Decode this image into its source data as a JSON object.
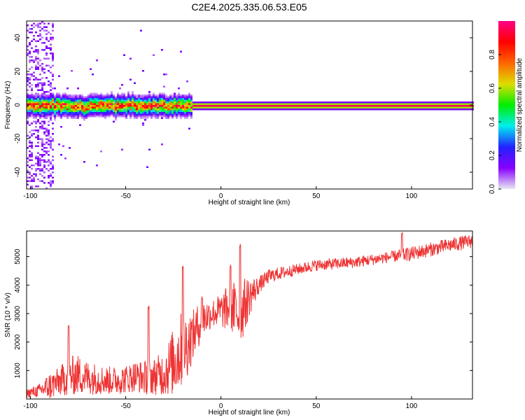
{
  "title": "C2E4.2025.335.06.53.E05",
  "colors": {
    "snr_line": "#ee3333",
    "colorbar": [
      "#e8e8f0",
      "#8800ff",
      "#2222ff",
      "#00eeee",
      "#00ee00",
      "#dddd00",
      "#ff6600",
      "#ff0000",
      "#ff0088"
    ]
  },
  "chart_data": [
    {
      "type": "heatmap",
      "title": "C2E4.2025.335.06.53.E05",
      "xlabel": "Height of straight line (km)",
      "ylabel": "Frequency (Hz)",
      "xlim": [
        -102,
        132
      ],
      "ylim": [
        -50,
        50
      ],
      "xticks": [
        -100,
        -50,
        0,
        50,
        100
      ],
      "yticks": [
        -40,
        -20,
        0,
        20,
        40
      ],
      "colorbar": {
        "label": "Normalized spectral amplitude",
        "range": [
          0,
          1
        ],
        "ticks": [
          "0.0",
          "0.2",
          "0.4",
          "0.6",
          "0.8"
        ]
      },
      "description_points": {
        "peak_frequency_hz": 0,
        "noisy_region_km": [
          -100,
          -15
        ],
        "clean_region_km": [
          -15,
          132
        ],
        "spread_hz_noisy": 4,
        "spread_hz_clean": 1.5
      }
    },
    {
      "type": "line",
      "xlabel": "Height of straight line (km)",
      "ylabel": "SNR (10 * v/v)",
      "xlim": [
        -102,
        132
      ],
      "ylim": [
        0,
        5900
      ],
      "xticks": [
        -100,
        -50,
        0,
        50,
        100
      ],
      "yticks": [
        1000,
        2000,
        3000,
        4000,
        5000
      ],
      "series": [
        {
          "name": "SNR",
          "x": [
            -102,
            -95,
            -90,
            -85,
            -80,
            -75,
            -70,
            -65,
            -60,
            -55,
            -50,
            -45,
            -40,
            -35,
            -30,
            -25,
            -22,
            -20,
            -18,
            -15,
            -10,
            -5,
            0,
            5,
            10,
            15,
            20,
            25,
            30,
            40,
            50,
            60,
            70,
            80,
            90,
            100,
            110,
            120,
            132
          ],
          "values": [
            200,
            300,
            450,
            600,
            800,
            850,
            750,
            700,
            650,
            650,
            700,
            800,
            750,
            800,
            900,
            1300,
            1600,
            1800,
            1900,
            2200,
            2800,
            3000,
            3100,
            3200,
            3000,
            3600,
            4000,
            4300,
            4400,
            4550,
            4700,
            4750,
            4800,
            4900,
            5000,
            5100,
            5250,
            5400,
            5550
          ],
          "noise": [
            150,
            250,
            500,
            500,
            700,
            700,
            600,
            550,
            500,
            500,
            500,
            550,
            600,
            650,
            800,
            1200,
            1400,
            1300,
            1200,
            900,
            700,
            500,
            600,
            900,
            1200,
            700,
            300,
            250,
            230,
            200,
            200,
            200,
            200,
            200,
            200,
            250,
            250,
            250,
            250
          ],
          "spikes": [
            {
              "x": -80,
              "value": 2600
            },
            {
              "x": -38,
              "value": 3300
            },
            {
              "x": -20,
              "value": 4700
            },
            {
              "x": -10,
              "value": 3600
            },
            {
              "x": 5,
              "value": 4700
            },
            {
              "x": 10,
              "value": 5450
            },
            {
              "x": 95,
              "value": 5900
            }
          ]
        }
      ]
    }
  ]
}
